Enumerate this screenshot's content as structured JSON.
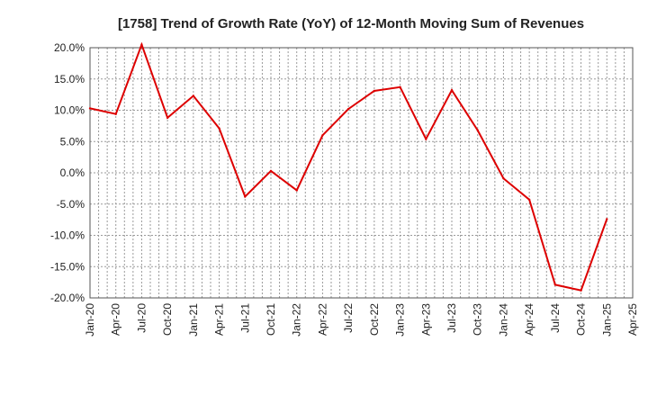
{
  "chart_data": {
    "type": "line",
    "title": "[1758]  Trend of Growth Rate (YoY) of 12-Month Moving Sum of Revenues",
    "xlabel": "",
    "ylabel": "",
    "x_ticks": [
      "Jan-20",
      "Apr-20",
      "Jul-20",
      "Oct-20",
      "Jan-21",
      "Apr-21",
      "Jul-21",
      "Oct-21",
      "Jan-22",
      "Apr-22",
      "Jul-22",
      "Oct-22",
      "Jan-23",
      "Apr-23",
      "Jul-23",
      "Oct-23",
      "Jan-24",
      "Apr-24",
      "Jul-24",
      "Oct-24",
      "Jan-25",
      "Apr-25"
    ],
    "y_ticks": [
      "20.0%",
      "15.0%",
      "10.0%",
      "5.0%",
      "0.0%",
      "-5.0%",
      "-10.0%",
      "-15.0%",
      "-20.0%"
    ],
    "y_tick_values": [
      20,
      15,
      10,
      5,
      0,
      -5,
      -10,
      -15,
      -20
    ],
    "ylim": [
      -20,
      20
    ],
    "grid": true,
    "line_color": "#dd0000",
    "series": [
      {
        "x": [
          "Jan-20",
          "Apr-20",
          "Jul-20",
          "Oct-20",
          "Jan-21",
          "Apr-21",
          "Jul-21",
          "Oct-21",
          "Jan-22",
          "Apr-22",
          "Jul-22",
          "Oct-22",
          "Jan-23",
          "Apr-23",
          "Jul-23",
          "Oct-23",
          "Jan-24",
          "Apr-24",
          "Jul-24",
          "Oct-24",
          "Jan-25"
        ],
        "values": [
          10.3,
          9.4,
          20.5,
          8.8,
          12.3,
          7.1,
          -3.8,
          0.3,
          -2.8,
          6.0,
          10.2,
          13.1,
          13.7,
          5.4,
          13.2,
          6.8,
          -0.9,
          -4.3,
          -17.9,
          -18.8,
          -7.4
        ]
      }
    ]
  }
}
